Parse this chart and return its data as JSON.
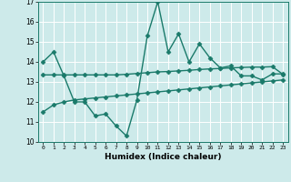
{
  "xlabel": "Humidex (Indice chaleur)",
  "background_color": "#cdeaea",
  "line_color": "#1a7a6a",
  "x": [
    0,
    1,
    2,
    3,
    4,
    5,
    6,
    7,
    8,
    9,
    10,
    11,
    12,
    13,
    14,
    15,
    16,
    17,
    18,
    19,
    20,
    21,
    22,
    23
  ],
  "line1": [
    14.0,
    14.5,
    13.3,
    12.0,
    12.0,
    11.3,
    11.4,
    10.8,
    10.3,
    12.1,
    15.3,
    17.0,
    14.5,
    15.4,
    14.0,
    14.9,
    14.2,
    13.7,
    13.8,
    13.3,
    13.3,
    13.1,
    13.4,
    13.4
  ],
  "line2": [
    13.35,
    13.35,
    13.35,
    13.35,
    13.35,
    13.35,
    13.35,
    13.35,
    13.38,
    13.42,
    13.46,
    13.5,
    13.52,
    13.55,
    13.58,
    13.62,
    13.65,
    13.67,
    13.7,
    13.72,
    13.74,
    13.74,
    13.76,
    13.38
  ],
  "line3": [
    11.5,
    11.85,
    12.0,
    12.1,
    12.15,
    12.2,
    12.25,
    12.3,
    12.35,
    12.4,
    12.45,
    12.5,
    12.55,
    12.6,
    12.65,
    12.7,
    12.75,
    12.8,
    12.85,
    12.9,
    12.95,
    13.0,
    13.05,
    13.1
  ],
  "ylim": [
    10,
    17
  ],
  "xlim": [
    -0.5,
    23.5
  ],
  "yticks": [
    10,
    11,
    12,
    13,
    14,
    15,
    16,
    17
  ],
  "xticks": [
    0,
    1,
    2,
    3,
    4,
    5,
    6,
    7,
    8,
    9,
    10,
    11,
    12,
    13,
    14,
    15,
    16,
    17,
    18,
    19,
    20,
    21,
    22,
    23
  ],
  "xtick_labels": [
    "0",
    "1",
    "2",
    "3",
    "4",
    "5",
    "6",
    "7",
    "8",
    "9",
    "10",
    "11",
    "12",
    "13",
    "14",
    "15",
    "16",
    "17",
    "18",
    "19",
    "20",
    "21",
    "22",
    "23"
  ],
  "marker": "D",
  "markersize": 2.5,
  "linewidth": 1.0
}
